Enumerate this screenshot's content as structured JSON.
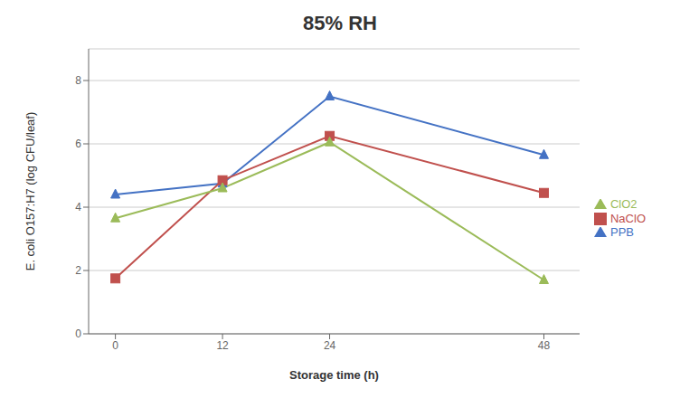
{
  "chart_data": {
    "type": "line",
    "title": "85% RH",
    "xlabel": "Storage time (h)",
    "ylabel": "E. coli O157:H7 (log CFU/leaf)",
    "x": [
      0,
      12,
      24,
      48
    ],
    "series": [
      {
        "name": "PPB",
        "color": "#4472C4",
        "marker": "triangle",
        "values": [
          4.4,
          4.75,
          7.5,
          5.65
        ]
      },
      {
        "name": "NaClO",
        "color": "#C0504D",
        "marker": "square",
        "values": [
          1.75,
          4.85,
          6.25,
          4.45
        ]
      },
      {
        "name": "ClO2",
        "color": "#9BBB59",
        "marker": "triangle",
        "values": [
          3.65,
          4.6,
          6.05,
          1.7
        ]
      }
    ],
    "xlim": [
      -3,
      52
    ],
    "xticks": [
      0,
      12,
      24,
      48
    ],
    "ylim": [
      0.0,
      9.0
    ],
    "yticks": [
      0.0,
      2.0,
      4.0,
      6.0,
      8.0
    ],
    "grid": true,
    "legend": "right"
  }
}
